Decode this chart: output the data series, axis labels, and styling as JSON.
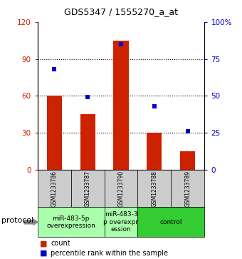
{
  "title": "GDS5347 / 1555270_a_at",
  "samples": [
    "GSM1233786",
    "GSM1233787",
    "GSM1233790",
    "GSM1233788",
    "GSM1233789"
  ],
  "counts": [
    60,
    45,
    105,
    30,
    15
  ],
  "percentiles": [
    68,
    49,
    85,
    43,
    26
  ],
  "left_ylim": [
    0,
    120
  ],
  "right_ylim": [
    0,
    100
  ],
  "left_yticks": [
    0,
    30,
    60,
    90,
    120
  ],
  "right_yticks": [
    0,
    25,
    50,
    75,
    100
  ],
  "right_yticklabels": [
    "0",
    "25",
    "50",
    "75",
    "100%"
  ],
  "bar_color": "#cc2200",
  "dot_color": "#0000cc",
  "groups": [
    {
      "label": "miR-483-5p\noverexpression",
      "n_samples": 2,
      "color": "#aaffaa"
    },
    {
      "label": "miR-483-3\np overexpr\nession",
      "n_samples": 1,
      "color": "#aaffaa"
    },
    {
      "label": "control",
      "n_samples": 2,
      "color": "#33cc33"
    }
  ],
  "protocol_label": "protocol",
  "legend_count_label": "count",
  "legend_percentile_label": "percentile rank within the sample",
  "sample_bg_color": "#cccccc",
  "title_fontsize": 9,
  "tick_fontsize": 7.5,
  "sample_fontsize": 5.5,
  "group_fontsize": 6.5,
  "legend_fontsize": 7,
  "protocol_fontsize": 8
}
